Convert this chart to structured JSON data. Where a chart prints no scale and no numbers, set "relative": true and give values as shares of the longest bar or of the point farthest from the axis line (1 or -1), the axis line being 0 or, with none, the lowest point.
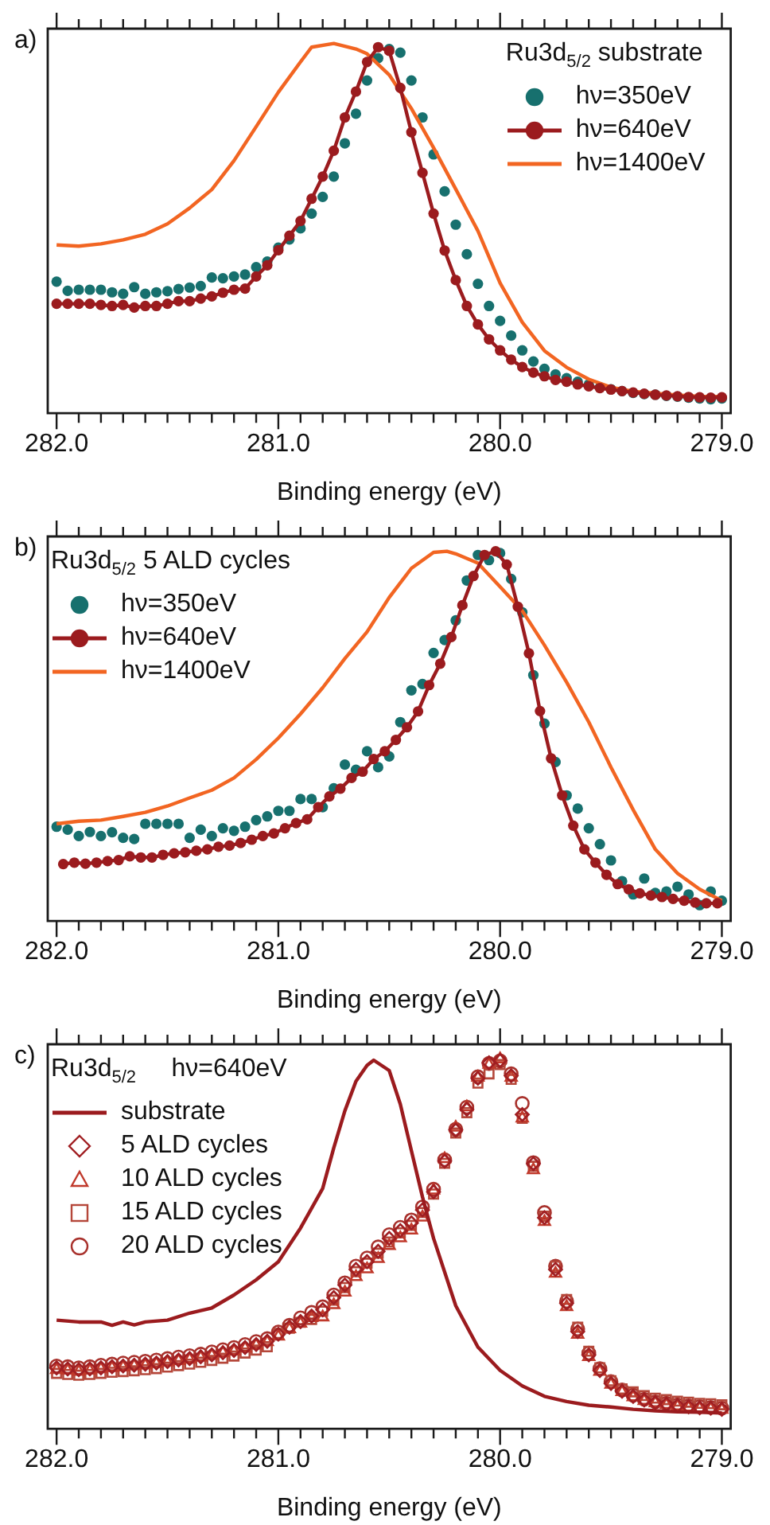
{
  "chart_data": [
    {
      "type": "line",
      "title": "a)",
      "xlabel": "Binding energy (eV)",
      "legend_title": "Ru3d$_{5/2}$ substrate",
      "legend": "top right",
      "relative": true,
      "xlim": [
        282.04,
        278.96
      ],
      "xticks": [
        {
          "value": 282,
          "label": "282.0"
        },
        {
          "value": 281.9,
          "label": null
        },
        {
          "value": 281.8,
          "label": null
        },
        {
          "value": 281.7,
          "label": null
        },
        {
          "value": 281.6,
          "label": null
        },
        {
          "value": 281.5,
          "label": null
        },
        {
          "value": 281.4,
          "label": null
        },
        {
          "value": 281.3,
          "label": null
        },
        {
          "value": 281.2,
          "label": null
        },
        {
          "value": 281.1,
          "label": null
        },
        {
          "value": 281,
          "label": "281.0"
        },
        {
          "value": 280.9,
          "label": null
        },
        {
          "value": 280.8,
          "label": null
        },
        {
          "value": 280.7,
          "label": null
        },
        {
          "value": 280.6,
          "label": null
        },
        {
          "value": 280.5,
          "label": null
        },
        {
          "value": 280.4,
          "label": null
        },
        {
          "value": 280.3,
          "label": null
        },
        {
          "value": 280.2,
          "label": null
        },
        {
          "value": 280.1,
          "label": null
        },
        {
          "value": 280,
          "label": "280.0"
        },
        {
          "value": 279.9,
          "label": null
        },
        {
          "value": 279.8,
          "label": null
        },
        {
          "value": 279.7,
          "label": null
        },
        {
          "value": 279.6,
          "label": null
        },
        {
          "value": 279.5,
          "label": null
        },
        {
          "value": 279.4,
          "label": null
        },
        {
          "value": 279.3,
          "label": null
        },
        {
          "value": 279.2,
          "label": null
        },
        {
          "value": 279.1,
          "label": null
        },
        {
          "value": 279,
          "label": "279.0"
        }
      ],
      "x": [
        282,
        281.95,
        281.9,
        281.85,
        281.8,
        281.75,
        281.7,
        281.65,
        281.6,
        281.55,
        281.5,
        281.45,
        281.4,
        281.35,
        281.3,
        281.25,
        281.2,
        281.15,
        281.1,
        281.05,
        281,
        280.95,
        280.9,
        280.85,
        280.8,
        280.75,
        280.7,
        280.65,
        280.6,
        280.55,
        280.5,
        280.45,
        280.4,
        280.35,
        280.3,
        280.25,
        280.2,
        280.15,
        280.1,
        280.05,
        280,
        279.95,
        279.9,
        279.85,
        279.8,
        279.75,
        279.7,
        279.65,
        279.6,
        279.55,
        279.5,
        279.45,
        279.4,
        279.35,
        279.3,
        279.25,
        279.2,
        279.15,
        279.1,
        279.05,
        279
      ],
      "series": [
        {
          "name": "hν=350eV",
          "type": "scatter",
          "marker": "circle",
          "color": "#17706e",
          "values": [
            0.356,
            0.331,
            0.334,
            0.334,
            0.334,
            0.327,
            0.323,
            0.341,
            0.323,
            0.327,
            0.33,
            0.336,
            0.34,
            0.344,
            0.367,
            0.365,
            0.37,
            0.375,
            0.395,
            0.41,
            0.448,
            0.47,
            0.5,
            0.54,
            0.585,
            0.64,
            0.73,
            0.81,
            0.9,
            0.96,
            0.985,
            0.975,
            0.9,
            0.8,
            0.7,
            0.6,
            0.51,
            0.43,
            0.35,
            0.29,
            0.25,
            0.21,
            0.17,
            0.14,
            0.12,
            0.105,
            0.095,
            0.085,
            0.078,
            0.07,
            0.065,
            0.06,
            0.055,
            0.052,
            0.05,
            0.047,
            0.045,
            0.042,
            0.04,
            0.038,
            0.04
          ]
        },
        {
          "name": "hν=640eV",
          "type": "line",
          "marker": "circle",
          "color": "#9b1b1e",
          "values": [
            0.296,
            0.296,
            0.296,
            0.296,
            0.293,
            0.29,
            0.293,
            0.286,
            0.29,
            0.29,
            0.296,
            0.303,
            0.303,
            0.31,
            0.316,
            0.326,
            0.334,
            0.337,
            0.37,
            0.4,
            0.441,
            0.48,
            0.52,
            0.58,
            0.64,
            0.71,
            0.8,
            0.87,
            0.95,
            0.99,
            0.98,
            0.88,
            0.76,
            0.65,
            0.54,
            0.44,
            0.36,
            0.29,
            0.24,
            0.2,
            0.17,
            0.145,
            0.125,
            0.11,
            0.1,
            0.09,
            0.085,
            0.078,
            0.073,
            0.068,
            0.064,
            0.06,
            0.056,
            0.053,
            0.05,
            0.048,
            0.046,
            0.044,
            0.043,
            0.042,
            0.043
          ]
        },
        {
          "name": "hν=1400eV",
          "type": "line",
          "marker": "none",
          "color": "#f26522",
          "x": [
            282,
            281.9,
            281.8,
            281.7,
            281.6,
            281.5,
            281.4,
            281.3,
            281.2,
            281.1,
            281,
            280.9,
            280.85,
            280.75,
            280.65,
            280.6,
            280.5,
            280.4,
            280.3,
            280.2,
            280.1,
            280,
            279.9,
            279.8,
            279.7,
            279.6,
            279.5,
            279.4,
            279.3,
            279.2,
            279.1,
            279
          ],
          "values": [
            0.455,
            0.452,
            0.458,
            0.469,
            0.484,
            0.512,
            0.555,
            0.605,
            0.683,
            0.775,
            0.868,
            0.95,
            0.99,
            1,
            0.985,
            0.972,
            0.915,
            0.824,
            0.718,
            0.606,
            0.493,
            0.352,
            0.246,
            0.169,
            0.124,
            0.092,
            0.07,
            0.059,
            0.054,
            0.049,
            0.046,
            0.045
          ]
        }
      ]
    },
    {
      "type": "line",
      "title": "b)",
      "xlabel": "Binding energy (eV)",
      "legend_title": "Ru3d$_{5/2}$ 5 ALD cycles",
      "legend": "top left",
      "relative": true,
      "xlim": [
        282.04,
        278.96
      ],
      "xticks": [
        {
          "value": 282,
          "label": "282.0"
        },
        {
          "value": 281.9,
          "label": null
        },
        {
          "value": 281.8,
          "label": null
        },
        {
          "value": 281.7,
          "label": null
        },
        {
          "value": 281.6,
          "label": null
        },
        {
          "value": 281.5,
          "label": null
        },
        {
          "value": 281.4,
          "label": null
        },
        {
          "value": 281.3,
          "label": null
        },
        {
          "value": 281.2,
          "label": null
        },
        {
          "value": 281.1,
          "label": null
        },
        {
          "value": 281,
          "label": "281.0"
        },
        {
          "value": 280.9,
          "label": null
        },
        {
          "value": 280.8,
          "label": null
        },
        {
          "value": 280.7,
          "label": null
        },
        {
          "value": 280.6,
          "label": null
        },
        {
          "value": 280.5,
          "label": null
        },
        {
          "value": 280.4,
          "label": null
        },
        {
          "value": 280.3,
          "label": null
        },
        {
          "value": 280.2,
          "label": null
        },
        {
          "value": 280.1,
          "label": null
        },
        {
          "value": 280,
          "label": "280.0"
        },
        {
          "value": 279.9,
          "label": null
        },
        {
          "value": 279.8,
          "label": null
        },
        {
          "value": 279.7,
          "label": null
        },
        {
          "value": 279.6,
          "label": null
        },
        {
          "value": 279.5,
          "label": null
        },
        {
          "value": 279.4,
          "label": null
        },
        {
          "value": 279.3,
          "label": null
        },
        {
          "value": 279.2,
          "label": null
        },
        {
          "value": 279.1,
          "label": null
        },
        {
          "value": 279,
          "label": "279.0"
        }
      ],
      "x": [
        282,
        281.95,
        281.9,
        281.85,
        281.8,
        281.75,
        281.7,
        281.65,
        281.6,
        281.55,
        281.5,
        281.45,
        281.4,
        281.35,
        281.3,
        281.25,
        281.2,
        281.15,
        281.1,
        281.05,
        281,
        280.95,
        280.9,
        280.85,
        280.8,
        280.75,
        280.7,
        280.65,
        280.6,
        280.55,
        280.5,
        280.45,
        280.4,
        280.35,
        280.3,
        280.25,
        280.2,
        280.15,
        280.1,
        280.05,
        280,
        279.95,
        279.9,
        279.85,
        279.8,
        279.75,
        279.7,
        279.65,
        279.6,
        279.55,
        279.5,
        279.45,
        279.4,
        279.35,
        279.3,
        279.25,
        279.2,
        279.15,
        279.1,
        279.05,
        279
      ],
      "series": [
        {
          "name": "hν=350eV",
          "type": "scatter",
          "marker": "circle",
          "color": "#17706e",
          "values": [
            0.255,
            0.247,
            0.23,
            0.241,
            0.23,
            0.24,
            0.225,
            0.222,
            0.263,
            0.263,
            0.263,
            0.263,
            0.225,
            0.247,
            0.23,
            0.251,
            0.244,
            0.255,
            0.273,
            0.283,
            0.298,
            0.298,
            0.33,
            0.33,
            0.308,
            0.359,
            0.423,
            0.409,
            0.459,
            0.416,
            0.445,
            0.538,
            0.624,
            0.641,
            0.725,
            0.76,
            0.813,
            0.921,
            0.99,
            0.976,
            0.995,
            0.925,
            0.835,
            0.665,
            0.534,
            0.43,
            0.34,
            0.304,
            0.251,
            0.208,
            0.164,
            0.108,
            0.072,
            0.115,
            0.076,
            0.08,
            0.093,
            0.072,
            0.043,
            0.08,
            0.055
          ]
        },
        {
          "name": "hν=640eV",
          "type": "line",
          "marker": "circle",
          "color": "#9b1b1e",
          "x": [
            281.97,
            281.92,
            281.87,
            281.82,
            281.77,
            281.72,
            281.67,
            281.62,
            281.57,
            281.52,
            281.47,
            281.42,
            281.37,
            281.32,
            281.27,
            281.22,
            281.17,
            281.12,
            281.07,
            281.02,
            280.97,
            280.92,
            280.87,
            280.82,
            280.77,
            280.72,
            280.67,
            280.62,
            280.57,
            280.52,
            280.47,
            280.42,
            280.37,
            280.32,
            280.27,
            280.22,
            280.17,
            280.12,
            280.07,
            280.02,
            279.97,
            279.92,
            279.87,
            279.82,
            279.77,
            279.72,
            279.67,
            279.62,
            279.57,
            279.52,
            279.47,
            279.42,
            279.37,
            279.32,
            279.27,
            279.22,
            279.17,
            279.12,
            279.07,
            279.02
          ],
          "values": [
            0.154,
            0.158,
            0.155,
            0.158,
            0.162,
            0.165,
            0.175,
            0.172,
            0.172,
            0.179,
            0.183,
            0.186,
            0.19,
            0.194,
            0.201,
            0.204,
            0.211,
            0.22,
            0.23,
            0.237,
            0.251,
            0.265,
            0.275,
            0.308,
            0.337,
            0.358,
            0.387,
            0.404,
            0.438,
            0.459,
            0.49,
            0.524,
            0.567,
            0.638,
            0.696,
            0.768,
            0.854,
            0.933,
            0.99,
            1,
            0.964,
            0.85,
            0.724,
            0.568,
            0.44,
            0.34,
            0.258,
            0.194,
            0.158,
            0.125,
            0.1,
            0.086,
            0.075,
            0.069,
            0.065,
            0.06,
            0.055,
            0.05,
            0.048,
            0.048
          ]
        },
        {
          "name": "hν=1400eV",
          "type": "line",
          "marker": "none",
          "color": "#f26522",
          "x": [
            282,
            281.9,
            281.8,
            281.7,
            281.6,
            281.5,
            281.4,
            281.3,
            281.2,
            281.1,
            281,
            280.9,
            280.8,
            280.7,
            280.6,
            280.5,
            280.4,
            280.3,
            280.24,
            280.2,
            280.1,
            280,
            279.9,
            279.8,
            279.7,
            279.6,
            279.5,
            279.4,
            279.3,
            279.2,
            279.1,
            279
          ],
          "values": [
            0.263,
            0.27,
            0.273,
            0.283,
            0.294,
            0.311,
            0.333,
            0.354,
            0.387,
            0.437,
            0.495,
            0.56,
            0.631,
            0.71,
            0.782,
            0.875,
            0.954,
            0.997,
            1,
            0.993,
            0.968,
            0.904,
            0.839,
            0.746,
            0.646,
            0.538,
            0.416,
            0.301,
            0.194,
            0.129,
            0.086,
            0.055
          ]
        }
      ]
    },
    {
      "type": "scatter",
      "title": "c)",
      "xlabel": "Binding energy (eV)",
      "legend_title": "Ru3d$_{5/2}$     hν=640eV",
      "legend": "top left",
      "relative": true,
      "xlim": [
        282.04,
        278.96
      ],
      "xticks": [
        {
          "value": 282,
          "label": "282.0"
        },
        {
          "value": 281.9,
          "label": null
        },
        {
          "value": 281.8,
          "label": null
        },
        {
          "value": 281.7,
          "label": null
        },
        {
          "value": 281.6,
          "label": null
        },
        {
          "value": 281.5,
          "label": null
        },
        {
          "value": 281.4,
          "label": null
        },
        {
          "value": 281.3,
          "label": null
        },
        {
          "value": 281.2,
          "label": null
        },
        {
          "value": 281.1,
          "label": null
        },
        {
          "value": 281,
          "label": "281.0"
        },
        {
          "value": 280.9,
          "label": null
        },
        {
          "value": 280.8,
          "label": null
        },
        {
          "value": 280.7,
          "label": null
        },
        {
          "value": 280.6,
          "label": null
        },
        {
          "value": 280.5,
          "label": null
        },
        {
          "value": 280.4,
          "label": null
        },
        {
          "value": 280.3,
          "label": null
        },
        {
          "value": 280.2,
          "label": null
        },
        {
          "value": 280.1,
          "label": null
        },
        {
          "value": 280,
          "label": "280.0"
        },
        {
          "value": 279.9,
          "label": null
        },
        {
          "value": 279.8,
          "label": null
        },
        {
          "value": 279.7,
          "label": null
        },
        {
          "value": 279.6,
          "label": null
        },
        {
          "value": 279.5,
          "label": null
        },
        {
          "value": 279.4,
          "label": null
        },
        {
          "value": 279.3,
          "label": null
        },
        {
          "value": 279.2,
          "label": null
        },
        {
          "value": 279.1,
          "label": null
        },
        {
          "value": 279,
          "label": "279.0"
        }
      ],
      "x": [
        282,
        281.95,
        281.9,
        281.85,
        281.8,
        281.75,
        281.7,
        281.65,
        281.6,
        281.55,
        281.5,
        281.45,
        281.4,
        281.35,
        281.3,
        281.25,
        281.2,
        281.15,
        281.1,
        281.05,
        281,
        280.95,
        280.9,
        280.85,
        280.8,
        280.75,
        280.7,
        280.65,
        280.6,
        280.55,
        280.5,
        280.45,
        280.4,
        280.35,
        280.3,
        280.25,
        280.2,
        280.15,
        280.1,
        280.05,
        280,
        279.95,
        279.9,
        279.85,
        279.8,
        279.75,
        279.7,
        279.65,
        279.6,
        279.55,
        279.5,
        279.45,
        279.4,
        279.35,
        279.3,
        279.25,
        279.2,
        279.15,
        279.1,
        279.05,
        279
      ],
      "series": [
        {
          "name": "substrate",
          "type": "line",
          "marker": "none",
          "color": "#9b1b1e",
          "x": [
            282,
            281.9,
            281.8,
            281.75,
            281.7,
            281.65,
            281.6,
            281.5,
            281.4,
            281.3,
            281.2,
            281.1,
            281,
            280.9,
            280.8,
            280.75,
            280.7,
            280.65,
            280.6,
            280.57,
            280.5,
            280.45,
            280.4,
            280.35,
            280.3,
            280.2,
            280.1,
            280,
            279.9,
            279.8,
            279.7,
            279.6,
            279.5,
            279.4,
            279.3,
            279.2,
            279.1,
            279
          ],
          "values": [
            0.294,
            0.289,
            0.289,
            0.28,
            0.289,
            0.281,
            0.289,
            0.294,
            0.313,
            0.327,
            0.362,
            0.403,
            0.452,
            0.543,
            0.65,
            0.76,
            0.86,
            0.94,
            0.983,
            0.997,
            0.969,
            0.878,
            0.752,
            0.627,
            0.515,
            0.333,
            0.221,
            0.158,
            0.116,
            0.088,
            0.074,
            0.064,
            0.059,
            0.053,
            0.049,
            0.046,
            0.045,
            0.043
          ]
        },
        {
          "name": "5 ALD cycles",
          "type": "scatter",
          "marker": "diamond",
          "color": "#a01e22",
          "values": [
            0.165,
            0.162,
            0.16,
            0.162,
            0.165,
            0.168,
            0.17,
            0.172,
            0.175,
            0.178,
            0.182,
            0.186,
            0.19,
            0.195,
            0.2,
            0.206,
            0.212,
            0.22,
            0.228,
            0.237,
            0.256,
            0.275,
            0.29,
            0.305,
            0.322,
            0.355,
            0.389,
            0.431,
            0.452,
            0.48,
            0.515,
            0.536,
            0.557,
            0.592,
            0.641,
            0.724,
            0.808,
            0.864,
            0.948,
            0.99,
            0.996,
            0.955,
            0.85,
            0.717,
            0.571,
            0.431,
            0.34,
            0.263,
            0.2,
            0.158,
            0.123,
            0.102,
            0.088,
            0.078,
            0.071,
            0.067,
            0.063,
            0.06,
            0.057,
            0.056,
            0.053
          ]
        },
        {
          "name": "10 ALD cycles",
          "type": "scatter",
          "marker": "triangle",
          "color": "#c0392b",
          "values": [
            0.16,
            0.158,
            0.155,
            0.158,
            0.162,
            0.165,
            0.167,
            0.17,
            0.172,
            0.176,
            0.18,
            0.184,
            0.188,
            0.193,
            0.198,
            0.205,
            0.21,
            0.218,
            0.226,
            0.235,
            0.25,
            0.27,
            0.285,
            0.3,
            0.302,
            0.335,
            0.369,
            0.411,
            0.432,
            0.46,
            0.495,
            0.516,
            0.537,
            0.572,
            0.645,
            0.73,
            0.815,
            0.87,
            0.95,
            0.985,
            1,
            0.95,
            0.84,
            0.7,
            0.56,
            0.42,
            0.33,
            0.255,
            0.195,
            0.155,
            0.12,
            0.1,
            0.086,
            0.076,
            0.07,
            0.065,
            0.061,
            0.058,
            0.055,
            0.054,
            0.052
          ]
        },
        {
          "name": "15 ALD cycles",
          "type": "scatter",
          "marker": "square",
          "color": "#b5473a",
          "values": [
            0.15,
            0.147,
            0.145,
            0.147,
            0.15,
            0.153,
            0.155,
            0.157,
            0.16,
            0.163,
            0.167,
            0.171,
            0.175,
            0.18,
            0.185,
            0.191,
            0.197,
            0.205,
            0.213,
            0.222,
            0.258,
            0.272,
            0.288,
            0.296,
            0.318,
            0.348,
            0.382,
            0.425,
            0.448,
            0.475,
            0.505,
            0.53,
            0.55,
            0.585,
            0.635,
            0.718,
            0.8,
            0.855,
            0.935,
            0.96,
            0.985,
            0.945,
            0.84,
            0.71,
            0.575,
            0.44,
            0.35,
            0.275,
            0.21,
            0.165,
            0.13,
            0.108,
            0.1,
            0.09,
            0.083,
            0.079,
            0.075,
            0.072,
            0.069,
            0.068,
            0.065
          ]
        },
        {
          "name": "20 ALD cycles",
          "type": "scatter",
          "marker": "circle",
          "color": "#a8312c",
          "values": [
            0.17,
            0.168,
            0.165,
            0.168,
            0.172,
            0.175,
            0.178,
            0.18,
            0.183,
            0.186,
            0.19,
            0.194,
            0.198,
            0.202,
            0.208,
            0.214,
            0.22,
            0.228,
            0.236,
            0.244,
            0.262,
            0.28,
            0.3,
            0.315,
            0.33,
            0.362,
            0.395,
            0.44,
            0.462,
            0.492,
            0.525,
            0.545,
            0.565,
            0.6,
            0.648,
            0.728,
            0.81,
            0.87,
            0.952,
            0.988,
            0.995,
            0.96,
            0.88,
            0.72,
            0.585,
            0.44,
            0.345,
            0.27,
            0.205,
            0.163,
            0.128,
            0.105,
            0.091,
            0.08,
            0.073,
            0.069,
            0.065,
            0.062,
            0.06,
            0.058,
            0.056
          ]
        }
      ]
    }
  ]
}
